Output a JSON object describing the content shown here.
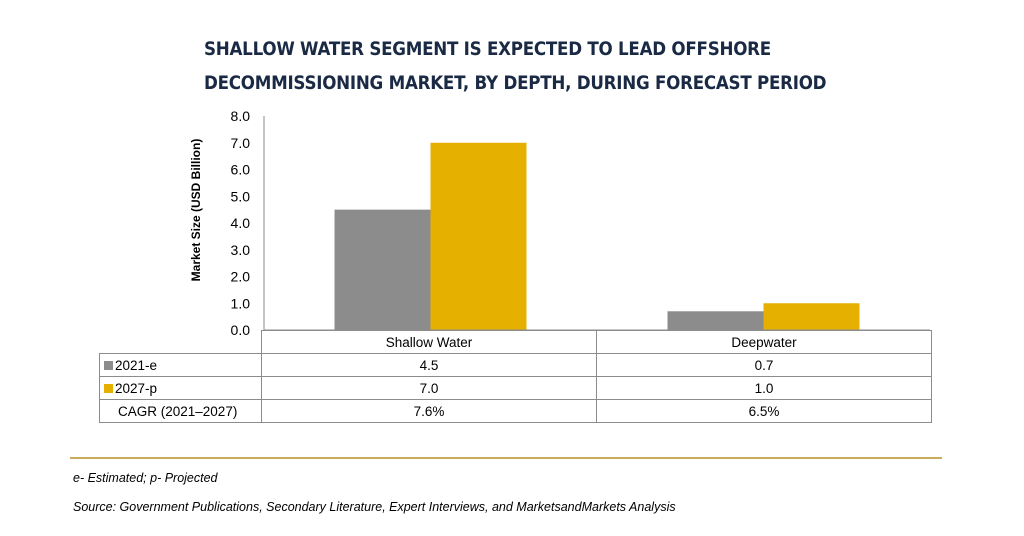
{
  "title_lines": [
    "SHALLOW WATER SEGMENT IS EXPECTED TO LEAD OFFSHORE",
    "DECOMMISSIONING MARKET, BY DEPTH, DURING FORECAST PERIOD"
  ],
  "chart_data": {
    "type": "bar",
    "categories": [
      "Shallow Water",
      "Deepwater"
    ],
    "series": [
      {
        "name": "2021-e",
        "color": "#8c8c8c",
        "values": [
          4.5,
          0.7
        ],
        "labels": [
          "4.5",
          "0.7"
        ]
      },
      {
        "name": "2027-p",
        "color": "#e6b000",
        "values": [
          7.0,
          1.0
        ],
        "labels": [
          "7.0",
          "1.0"
        ]
      }
    ],
    "cagr_label": "CAGR (2021–2027)",
    "cagr": [
      "7.6%",
      "6.5%"
    ],
    "ylabel": "Market Size (USD Billion)",
    "ylim": [
      0,
      8
    ],
    "yticks": [
      "0.0",
      "1.0",
      "2.0",
      "3.0",
      "4.0",
      "5.0",
      "6.0",
      "7.0",
      "8.0"
    ],
    "legend_placement": "data table"
  },
  "footnote": "e- Estimated; p- Projected",
  "source": "Source: Government Publications, Secondary Literature, Expert Interviews, and MarketsandMarkets Analysis"
}
